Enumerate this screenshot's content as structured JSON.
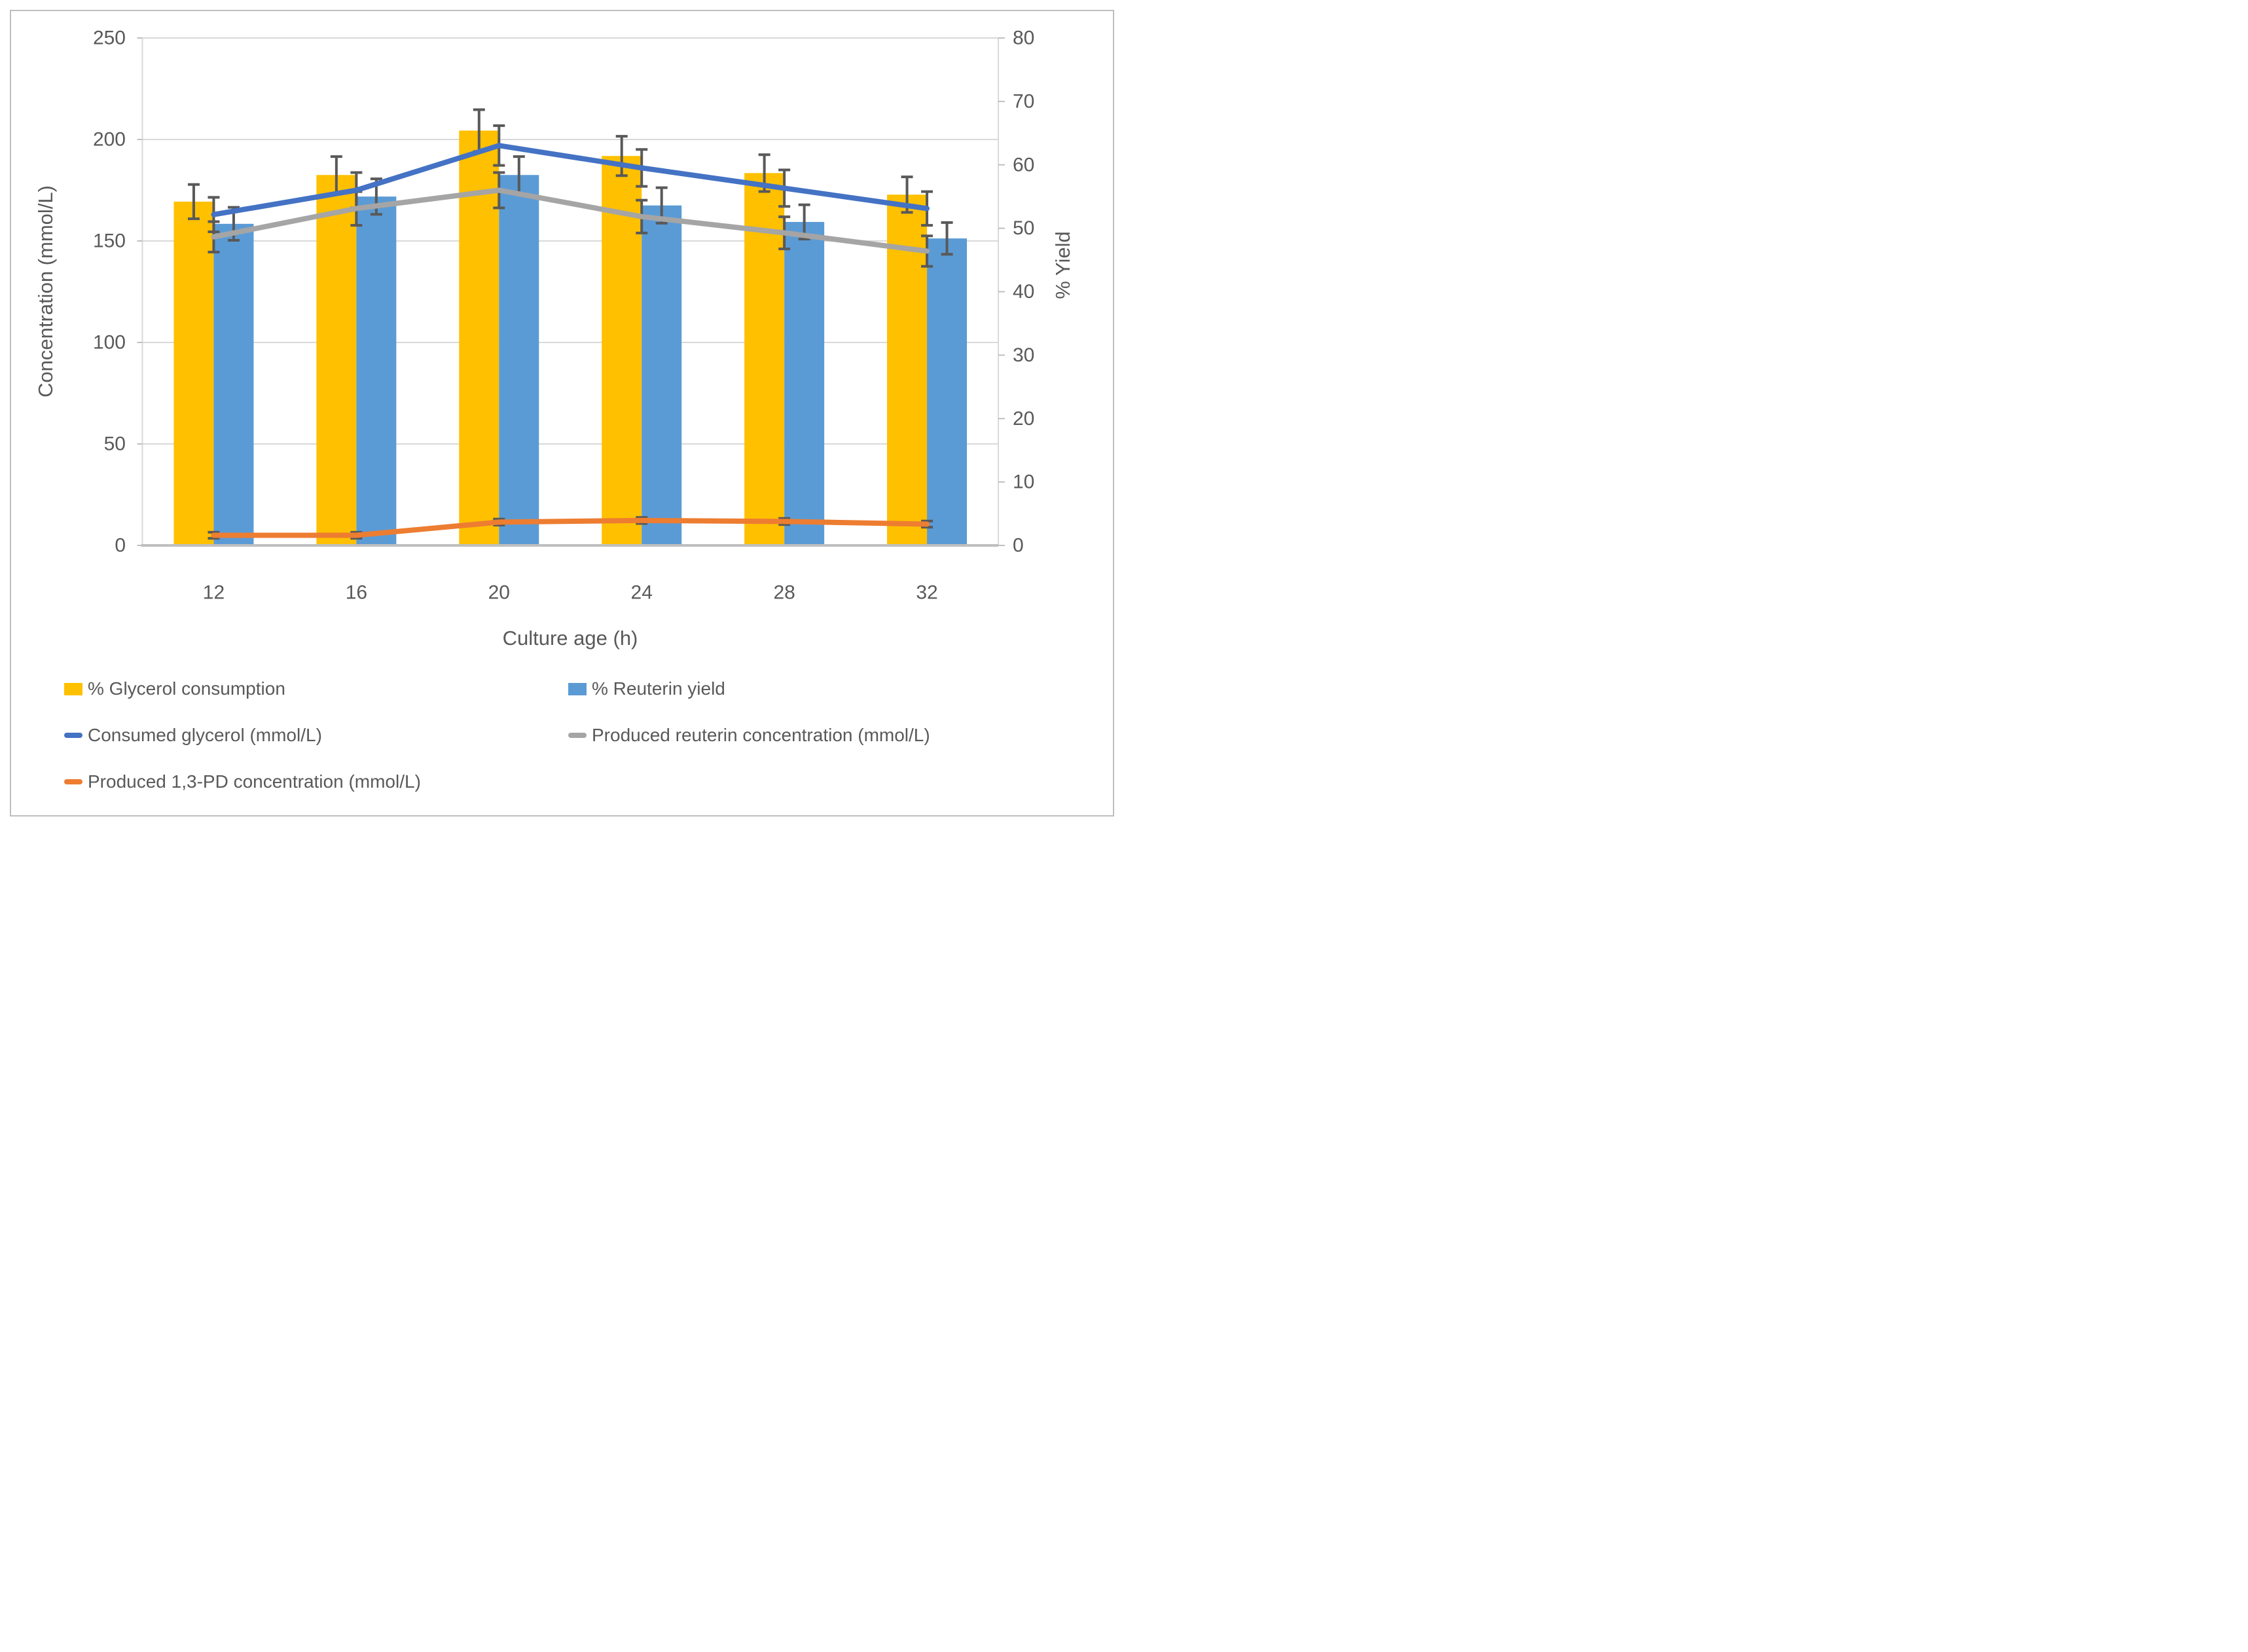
{
  "chart_data": {
    "type": "combo-bar-line",
    "title": "",
    "categories": [
      "12",
      "16",
      "20",
      "24",
      "28",
      "32"
    ],
    "x_axis": {
      "title": "Culture age (h)"
    },
    "y_left": {
      "title": "Concentration (mmol/L)",
      "min": 0,
      "max": 250,
      "step": 50,
      "ticks": [
        "0",
        "50",
        "100",
        "150",
        "200",
        "250"
      ]
    },
    "y_right": {
      "title": "% Yield",
      "min": 0,
      "max": 80,
      "step": 10,
      "ticks": [
        "0",
        "10",
        "20",
        "30",
        "40",
        "50",
        "60",
        "70",
        "80"
      ]
    },
    "grid": true,
    "legend_position": "bottom-two-columns",
    "colors": {
      "gridline": "#d9d9d9",
      "axis_line": "#bfbfbf",
      "error_bar": "#595959",
      "text": "#595959",
      "frame_border": "#bfbfbf",
      "background": "#ffffff"
    },
    "series": [
      {
        "name": "% Glycerol consumption",
        "type": "bar",
        "axis": "right",
        "color": "#FFC000",
        "values": [
          54.2,
          58.4,
          65.4,
          61.4,
          58.7,
          55.3
        ],
        "errors": [
          2.7,
          2.9,
          3.3,
          3.1,
          2.9,
          2.8
        ]
      },
      {
        "name": "% Reuterin yield",
        "type": "bar",
        "axis": "right",
        "color": "#5B9BD5",
        "values": [
          50.7,
          55.0,
          58.4,
          53.6,
          51.0,
          48.4
        ],
        "errors": [
          2.6,
          2.8,
          2.9,
          2.8,
          2.7,
          2.5
        ]
      },
      {
        "name": "Consumed glycerol (mmol/L)",
        "type": "line",
        "axis": "left",
        "color": "#4472C4",
        "values": [
          163,
          175,
          197,
          186,
          176,
          166
        ],
        "errors": [
          8.5,
          8.7,
          9.8,
          9.1,
          9.0,
          8.3
        ]
      },
      {
        "name": "Produced reuterin concentration (mmol/L)",
        "type": "line",
        "axis": "left",
        "color": "#A5A5A5",
        "values": [
          152,
          166,
          175,
          162,
          154,
          145
        ],
        "errors": [
          7.5,
          8.3,
          8.7,
          8.1,
          7.9,
          7.5
        ]
      },
      {
        "name": "Produced 1,3-PD concentration (mmol/L)",
        "type": "line",
        "axis": "left",
        "color": "#ED7D31",
        "values": [
          5,
          5,
          11.5,
          12.3,
          11.8,
          10.5
        ],
        "errors": [
          1.5,
          1.5,
          1.5,
          1.5,
          1.5,
          1.5
        ]
      }
    ],
    "legend_layout": [
      {
        "series": 0,
        "col": 0,
        "row": 0
      },
      {
        "series": 1,
        "col": 1,
        "row": 0
      },
      {
        "series": 2,
        "col": 0,
        "row": 1
      },
      {
        "series": 3,
        "col": 1,
        "row": 1
      },
      {
        "series": 4,
        "col": 0,
        "row": 2
      }
    ]
  }
}
